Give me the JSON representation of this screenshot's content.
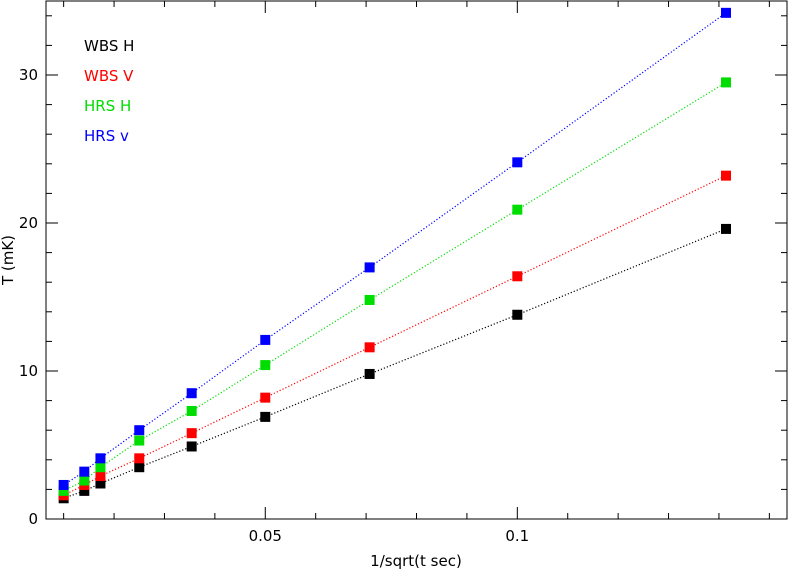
{
  "chart_data": {
    "type": "scatter",
    "title": "",
    "xlabel": "1/sqrt(t sec)",
    "ylabel": "T (mK)",
    "xlim": [
      0.0065,
      0.1535
    ],
    "ylim": [
      0,
      35
    ],
    "x_ticks": [
      {
        "value": 0.05,
        "label": "0.05"
      },
      {
        "value": 0.1,
        "label": "0.1"
      }
    ],
    "y_ticks": [
      {
        "value": 0,
        "label": "0"
      },
      {
        "value": 10,
        "label": "10"
      },
      {
        "value": 20,
        "label": "20"
      },
      {
        "value": 30,
        "label": "30"
      }
    ],
    "grid": false,
    "legend_position": "top-left",
    "x": [
      0.01,
      0.0141,
      0.0173,
      0.025,
      0.0354,
      0.05,
      0.0707,
      0.1,
      0.1414
    ],
    "series": [
      {
        "name": "WBS H",
        "color": "#000000",
        "values": [
          1.4,
          1.9,
          2.4,
          3.5,
          4.9,
          6.9,
          9.8,
          13.8,
          19.6
        ]
      },
      {
        "name": "WBS V",
        "color": "#ff0000",
        "values": [
          1.6,
          2.3,
          2.9,
          4.1,
          5.8,
          8.2,
          11.6,
          16.4,
          23.2
        ]
      },
      {
        "name": "HRS H",
        "color": "#00dd00",
        "values": [
          1.9,
          2.6,
          3.5,
          5.3,
          7.3,
          10.4,
          14.8,
          20.9,
          29.5
        ]
      },
      {
        "name": "HRS v",
        "color": "#0000ff",
        "values": [
          2.3,
          3.2,
          4.1,
          6.0,
          8.5,
          12.1,
          17.0,
          24.1,
          34.2
        ]
      }
    ]
  }
}
